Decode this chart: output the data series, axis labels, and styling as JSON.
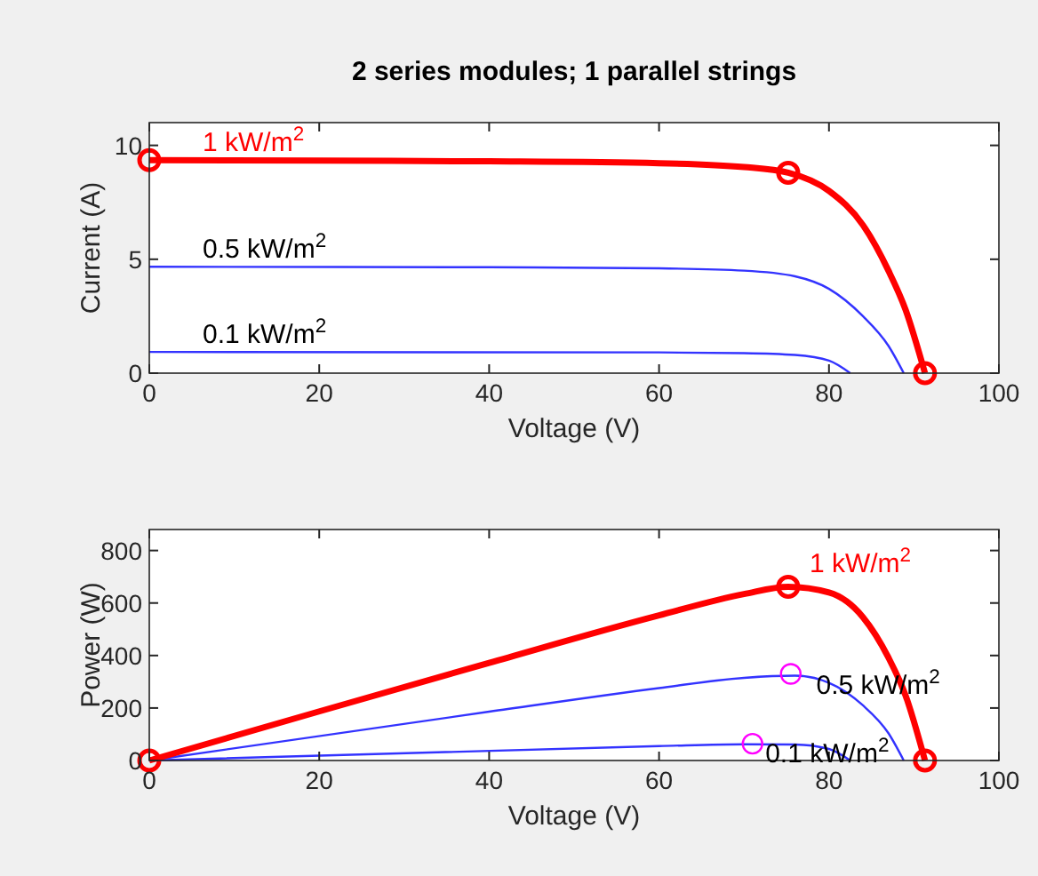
{
  "chart_data": [
    {
      "type": "line",
      "title": "2 series modules; 1 parallel strings",
      "xlabel": "Voltage (V)",
      "ylabel": "Current (A)",
      "xlim": [
        0,
        100
      ],
      "ylim": [
        0,
        11
      ],
      "xticks": [
        0,
        20,
        40,
        60,
        80,
        100
      ],
      "yticks": [
        0,
        5,
        10
      ],
      "series": [
        {
          "name": "0.1 kW/m$^{2}$",
          "color": "#3333ff",
          "x": [
            0,
            60,
            70,
            76,
            80,
            82.5
          ],
          "values": [
            0.93,
            0.91,
            0.88,
            0.8,
            0.55,
            0
          ]
        },
        {
          "name": "0.5 kW/m$^{2}$",
          "color": "#3333ff",
          "x": [
            0,
            40,
            60,
            70,
            76,
            80,
            84,
            87,
            88.8
          ],
          "values": [
            4.67,
            4.65,
            4.6,
            4.5,
            4.25,
            3.7,
            2.5,
            1.2,
            0
          ]
        },
        {
          "name": "1 kW/m$^{2}$",
          "color": "#ff0000",
          "x": [
            0,
            20,
            40,
            60,
            70,
            75.2,
            80,
            84,
            87,
            89,
            91.3
          ],
          "values": [
            9.35,
            9.33,
            9.3,
            9.22,
            9.05,
            8.8,
            8.0,
            6.5,
            4.5,
            2.8,
            0
          ]
        },
        {
          "type": "scatter",
          "marker": "circle",
          "color": "#ff0000",
          "x": [
            0,
            75.2,
            91.3
          ],
          "values": [
            9.35,
            8.8,
            0
          ]
        }
      ]
    },
    {
      "type": "line",
      "xlabel": "Voltage (V)",
      "ylabel": "Power (W)",
      "xlim": [
        0,
        100
      ],
      "ylim": [
        0,
        880
      ],
      "xticks": [
        0,
        20,
        40,
        60,
        80,
        100
      ],
      "yticks": [
        0,
        200,
        400,
        600,
        800
      ],
      "series": [
        {
          "name": "0.1 kW/m$^{2}$",
          "color": "#3333ff",
          "x": [
            0,
            60,
            70,
            76,
            80,
            82.5
          ],
          "values": [
            0,
            55,
            62,
            61,
            44,
            0
          ]
        },
        {
          "name": "0.5 kW/m$^{2}$",
          "color": "#3333ff",
          "x": [
            0,
            40,
            60,
            70,
            76,
            80,
            84,
            87,
            88.8
          ],
          "values": [
            0,
            186,
            276,
            315,
            323,
            296,
            210,
            104,
            0
          ]
        },
        {
          "name": "1 kW/m$^{2}$",
          "color": "#ff0000",
          "x": [
            0,
            20,
            40,
            60,
            70,
            75.2,
            80,
            84,
            87,
            89,
            91.3
          ],
          "values": [
            0,
            187,
            372,
            553,
            634,
            662,
            640,
            546,
            392,
            249,
            0
          ]
        },
        {
          "type": "scatter",
          "marker": "circle",
          "color": "#ff00ff",
          "x": [
            71,
            75.5
          ],
          "values": [
            64,
            330
          ]
        },
        {
          "type": "scatter",
          "marker": "circle",
          "color": "#ff0000",
          "x": [
            0,
            75.2,
            91.3
          ],
          "values": [
            0,
            662,
            0
          ]
        }
      ]
    }
  ]
}
